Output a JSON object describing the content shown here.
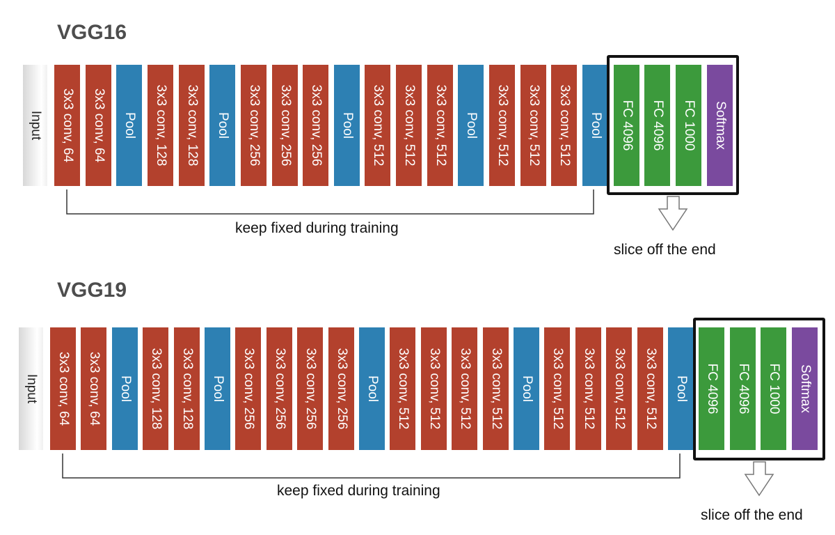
{
  "colors": {
    "conv": "#b3412d",
    "pool": "#2d80b3",
    "fc": "#3c9a3c",
    "softmax": "#7a4a9e",
    "input": "#e6e6e6",
    "title": "#4d4d4d"
  },
  "diagrams": [
    {
      "title": "VGG16",
      "layers": [
        {
          "type": "input",
          "label": "Input"
        },
        {
          "type": "conv",
          "label": "3x3 conv, 64"
        },
        {
          "type": "conv",
          "label": "3x3 conv, 64"
        },
        {
          "type": "pool",
          "label": "Pool"
        },
        {
          "type": "conv",
          "label": "3x3 conv, 128"
        },
        {
          "type": "conv",
          "label": "3x3 conv, 128"
        },
        {
          "type": "pool",
          "label": "Pool"
        },
        {
          "type": "conv",
          "label": "3x3 conv, 256"
        },
        {
          "type": "conv",
          "label": "3x3 conv, 256"
        },
        {
          "type": "conv",
          "label": "3x3 conv, 256"
        },
        {
          "type": "pool",
          "label": "Pool"
        },
        {
          "type": "conv",
          "label": "3x3 conv, 512"
        },
        {
          "type": "conv",
          "label": "3x3 conv, 512"
        },
        {
          "type": "conv",
          "label": "3x3 conv, 512"
        },
        {
          "type": "pool",
          "label": "Pool"
        },
        {
          "type": "conv",
          "label": "3x3 conv, 512"
        },
        {
          "type": "conv",
          "label": "3x3 conv, 512"
        },
        {
          "type": "conv",
          "label": "3x3 conv, 512"
        },
        {
          "type": "pool",
          "label": "Pool"
        },
        {
          "type": "fc",
          "label": "FC 4096"
        },
        {
          "type": "fc",
          "label": "FC 4096"
        },
        {
          "type": "fc",
          "label": "FC 1000"
        },
        {
          "type": "softmax",
          "label": "Softmax"
        }
      ],
      "fixed_caption": "keep fixed during training",
      "slice_caption": "slice off the end"
    },
    {
      "title": "VGG19",
      "layers": [
        {
          "type": "input",
          "label": "Input"
        },
        {
          "type": "conv",
          "label": "3x3 conv, 64"
        },
        {
          "type": "conv",
          "label": "3x3 conv, 64"
        },
        {
          "type": "pool",
          "label": "Pool"
        },
        {
          "type": "conv",
          "label": "3x3 conv, 128"
        },
        {
          "type": "conv",
          "label": "3x3 conv, 128"
        },
        {
          "type": "pool",
          "label": "Pool"
        },
        {
          "type": "conv",
          "label": "3x3 conv, 256"
        },
        {
          "type": "conv",
          "label": "3x3 conv, 256"
        },
        {
          "type": "conv",
          "label": "3x3 conv, 256"
        },
        {
          "type": "conv",
          "label": "3x3 conv, 256"
        },
        {
          "type": "pool",
          "label": "Pool"
        },
        {
          "type": "conv",
          "label": "3x3 conv, 512"
        },
        {
          "type": "conv",
          "label": "3x3 conv, 512"
        },
        {
          "type": "conv",
          "label": "3x3 conv, 512"
        },
        {
          "type": "conv",
          "label": "3x3 conv, 512"
        },
        {
          "type": "pool",
          "label": "Pool"
        },
        {
          "type": "conv",
          "label": "3x3 conv, 512"
        },
        {
          "type": "conv",
          "label": "3x3 conv, 512"
        },
        {
          "type": "conv",
          "label": "3x3 conv, 512"
        },
        {
          "type": "conv",
          "label": "3x3 conv, 512"
        },
        {
          "type": "pool",
          "label": "Pool"
        },
        {
          "type": "fc",
          "label": "FC 4096"
        },
        {
          "type": "fc",
          "label": "FC 4096"
        },
        {
          "type": "fc",
          "label": "FC 1000"
        },
        {
          "type": "softmax",
          "label": "Softmax"
        }
      ],
      "fixed_caption": "keep fixed during training",
      "slice_caption": "slice off the end"
    }
  ]
}
